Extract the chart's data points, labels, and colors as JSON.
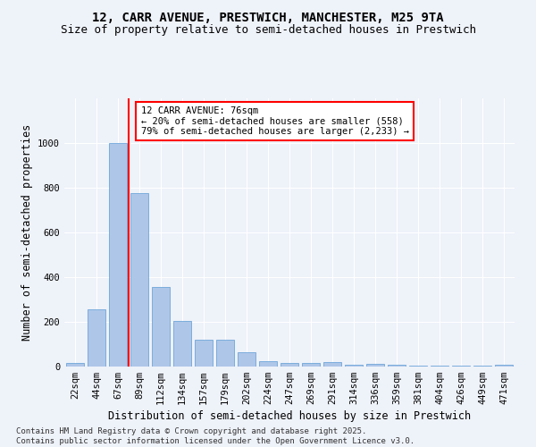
{
  "title_line1": "12, CARR AVENUE, PRESTWICH, MANCHESTER, M25 9TA",
  "title_line2": "Size of property relative to semi-detached houses in Prestwich",
  "xlabel": "Distribution of semi-detached houses by size in Prestwich",
  "ylabel": "Number of semi-detached properties",
  "categories": [
    "22sqm",
    "44sqm",
    "67sqm",
    "89sqm",
    "112sqm",
    "134sqm",
    "157sqm",
    "179sqm",
    "202sqm",
    "224sqm",
    "247sqm",
    "269sqm",
    "291sqm",
    "314sqm",
    "336sqm",
    "359sqm",
    "381sqm",
    "404sqm",
    "426sqm",
    "449sqm",
    "471sqm"
  ],
  "values": [
    18,
    258,
    1000,
    778,
    358,
    205,
    120,
    120,
    65,
    25,
    18,
    18,
    20,
    8,
    12,
    8,
    5,
    5,
    5,
    5,
    8
  ],
  "bar_color": "#aec6e8",
  "bar_edge_color": "#5b9bd5",
  "annotation_text_line1": "12 CARR AVENUE: 76sqm",
  "annotation_text_line2": "← 20% of semi-detached houses are smaller (558)",
  "annotation_text_line3": "79% of semi-detached houses are larger (2,233) →",
  "annotation_box_color": "red",
  "ylim": [
    0,
    1200
  ],
  "yticks": [
    0,
    200,
    400,
    600,
    800,
    1000
  ],
  "footer_line1": "Contains HM Land Registry data © Crown copyright and database right 2025.",
  "footer_line2": "Contains public sector information licensed under the Open Government Licence v3.0.",
  "bg_color": "#eef2f9",
  "grid_color": "#ffffff",
  "title_fontsize": 10,
  "subtitle_fontsize": 9,
  "axis_label_fontsize": 8.5,
  "tick_fontsize": 7.5,
  "annotation_fontsize": 7.5,
  "footer_fontsize": 6.5
}
